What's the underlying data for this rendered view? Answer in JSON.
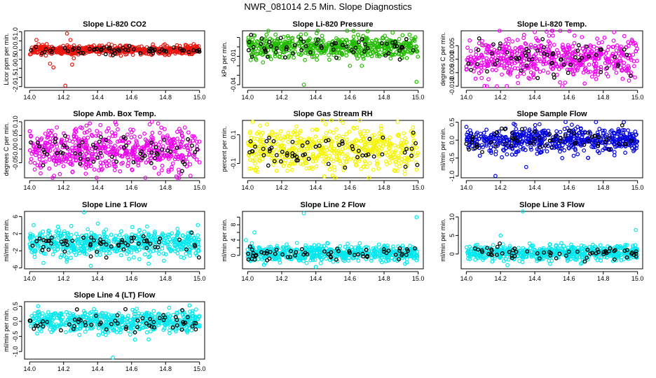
{
  "figure": {
    "title": "NWR_081014  2.5 Min. Slope Diagnostics"
  },
  "chart_data": [
    {
      "type": "scatter",
      "title": "Slope Li-820 CO2",
      "xlabel": "",
      "ylabel": "Licor ppm per min.",
      "xlim": [
        13.97,
        15.03
      ],
      "ylim": [
        -2.05,
        1.05
      ],
      "xticks": [
        "14.0",
        "14.2",
        "14.4",
        "14.6",
        "14.8",
        "15.0"
      ],
      "yticks": [
        "-2.0",
        "-1.5",
        "-1.0",
        "-0.5",
        "0.0",
        "0.5",
        "1.0"
      ],
      "color": "#e8150e",
      "series_summary": {
        "center": 0.0,
        "spread": 0.12
      },
      "highlighted_points_color": "#000000",
      "outliers": [
        [
          14.04,
          0.55
        ],
        [
          14.12,
          -0.75
        ],
        [
          14.14,
          -0.95
        ],
        [
          14.21,
          -1.95
        ],
        [
          14.22,
          0.9
        ],
        [
          14.25,
          -0.8
        ],
        [
          14.26,
          -0.45
        ],
        [
          14.24,
          0.55
        ]
      ]
    },
    {
      "type": "scatter",
      "title": "Slope Li-820 Pressure",
      "xlabel": "",
      "ylabel": "kPa per min.",
      "xlim": [
        13.97,
        15.03
      ],
      "ylim": [
        -0.043,
        0.017
      ],
      "xticks": [
        "14.0",
        "14.2",
        "14.4",
        "14.6",
        "14.8",
        "15.0"
      ],
      "yticks": [
        "-0.04",
        "-0.03",
        "-0.02",
        "-0.01",
        "0.00",
        "0.01"
      ],
      "yticks_labeled": [
        "-0.04",
        "-0.01"
      ],
      "color": "#22bb00",
      "series_summary": {
        "center": 0.0,
        "spread": 0.006
      },
      "highlighted_points_color": "#000000",
      "outliers": [
        [
          14.33,
          -0.04
        ],
        [
          14.99,
          -0.037
        ],
        [
          14.85,
          0.015
        ],
        [
          14.6,
          -0.02
        ]
      ]
    },
    {
      "type": "scatter",
      "title": "Slope Li-820 Temp.",
      "xlabel": "",
      "ylabel": "degrees C per min.",
      "xlim": [
        13.97,
        15.03
      ],
      "ylim": [
        -0.0105,
        0.0105
      ],
      "xticks": [
        "14.0",
        "14.2",
        "14.4",
        "14.6",
        "14.8",
        "15.0"
      ],
      "yticks": [
        "-0.010",
        "-0.005",
        "0.000",
        "0.005"
      ],
      "color": "#ee00ee",
      "series_summary": {
        "center": 0.0,
        "spread": 0.004
      },
      "highlighted_points_color": "#000000",
      "outliers": [
        [
          14.4,
          0.01
        ],
        [
          14.12,
          -0.01
        ],
        [
          14.56,
          -0.01
        ]
      ]
    },
    {
      "type": "scatter",
      "title": "Slope Amb. Box Temp.",
      "xlabel": "",
      "ylabel": "degrees C per min.",
      "xlim": [
        13.97,
        15.03
      ],
      "ylim": [
        -0.105,
        0.105
      ],
      "xticks": [
        "14.0",
        "14.2",
        "14.4",
        "14.6",
        "14.8",
        "15.0"
      ],
      "yticks": [
        "-0.05",
        "0.00",
        "0.05",
        "0.10"
      ],
      "color": "#ee00ee",
      "series_summary": {
        "center": 0.0,
        "spread": 0.04
      },
      "highlighted_points_color": "#000000",
      "outliers": [
        [
          14.72,
          0.1
        ],
        [
          14.33,
          -0.09
        ],
        [
          14.76,
          -0.09
        ],
        [
          14.51,
          0.09
        ]
      ]
    },
    {
      "type": "scatter",
      "title": "Slope Gas Stream RH",
      "xlabel": "",
      "ylabel": "percent per min.",
      "xlim": [
        13.97,
        15.03
      ],
      "ylim": [
        -0.2,
        0.2
      ],
      "xticks": [
        "14.0",
        "14.2",
        "14.4",
        "14.6",
        "14.8",
        "15.0"
      ],
      "yticks": [
        "-0.1",
        "0.1"
      ],
      "color": "#f4f400",
      "series_summary": {
        "center": 0.0,
        "spread": 0.08
      },
      "highlighted_points_color": "#000000",
      "outliers": [
        [
          14.03,
          0.19
        ],
        [
          14.88,
          0.19
        ],
        [
          14.45,
          -0.19
        ]
      ]
    },
    {
      "type": "scatter",
      "title": "Slope Sample Flow",
      "xlabel": "",
      "ylabel": "ml/min per min.",
      "xlim": [
        13.97,
        15.03
      ],
      "ylim": [
        -1.05,
        0.55
      ],
      "xticks": [
        "14.0",
        "14.2",
        "14.4",
        "14.6",
        "14.8",
        "15.0"
      ],
      "yticks": [
        "-1.0",
        "-0.5",
        "0.0",
        "0.5"
      ],
      "color": "#0000dd",
      "series_summary": {
        "center": 0.0,
        "spread": 0.17
      },
      "highlighted_points_color": "#000000",
      "outliers": [
        [
          14.17,
          -1.0
        ],
        [
          14.35,
          -0.75
        ],
        [
          14.56,
          -0.5
        ],
        [
          14.92,
          0.5
        ]
      ]
    },
    {
      "type": "scatter",
      "title": "Slope Line 1 Flow",
      "xlabel": "",
      "ylabel": "ml/min per min.",
      "xlim": [
        13.97,
        15.03
      ],
      "ylim": [
        -6.2,
        7.2
      ],
      "xticks": [
        "14.0",
        "14.2",
        "14.4",
        "14.6",
        "14.8",
        "15.0"
      ],
      "yticks": [
        "-6",
        "-2",
        "2",
        "6"
      ],
      "color": "#00e8ee",
      "series_summary": {
        "center": -0.3,
        "spread": 1.5
      },
      "highlighted_points_color": "#000000",
      "outliers": [
        [
          14.32,
          7.0
        ],
        [
          14.99,
          4.0
        ],
        [
          14.36,
          -5.5
        ],
        [
          14.7,
          -5.0
        ]
      ]
    },
    {
      "type": "scatter",
      "title": "Slope Line 2 Flow",
      "xlabel": "",
      "ylabel": "ml/min per min.",
      "xlim": [
        13.97,
        15.03
      ],
      "ylim": [
        -3.5,
        11.5
      ],
      "xticks": [
        "14.0",
        "14.2",
        "14.4",
        "14.6",
        "14.8",
        "15.0"
      ],
      "yticks": [
        "0",
        "2",
        "4",
        "6",
        "8",
        "10"
      ],
      "yticks_labeled": [
        "0",
        "4",
        "8"
      ],
      "color": "#00e8ee",
      "series_summary": {
        "center": 0.5,
        "spread": 1.0
      },
      "highlighted_points_color": "#000000",
      "outliers": [
        [
          14.33,
          11.0
        ],
        [
          14.99,
          10.0
        ],
        [
          14.04,
          6.0
        ],
        [
          13.99,
          4.0
        ]
      ]
    },
    {
      "type": "scatter",
      "title": "Slope Line 3 Flow",
      "xlabel": "",
      "ylabel": "ml/min per min.",
      "xlim": [
        13.97,
        15.03
      ],
      "ylim": [
        -4.0,
        11.5
      ],
      "xticks": [
        "14.0",
        "14.2",
        "14.4",
        "14.6",
        "14.8",
        "15.0"
      ],
      "yticks": [
        "0",
        "5",
        "10"
      ],
      "color": "#00e8ee",
      "series_summary": {
        "center": 0.3,
        "spread": 1.0
      },
      "highlighted_points_color": "#000000",
      "outliers": [
        [
          14.33,
          11.5
        ],
        [
          14.99,
          6.5
        ],
        [
          14.2,
          5.0
        ],
        [
          14.24,
          -3.0
        ]
      ]
    },
    {
      "type": "scatter",
      "title": "Slope Line 4 (LT) Flow",
      "xlabel": "",
      "ylabel": "ml/min per min.",
      "xlim": [
        13.97,
        15.03
      ],
      "ylim": [
        -1.25,
        0.65
      ],
      "xticks": [
        "14.0",
        "14.2",
        "14.4",
        "14.6",
        "14.8",
        "15.0"
      ],
      "yticks": [
        "-1.0",
        "-0.5",
        "0.0",
        "0.5"
      ],
      "color": "#00e8ee",
      "series_summary": {
        "center": 0.0,
        "spread": 0.18
      },
      "highlighted_points_color": "#000000",
      "outliers": [
        [
          14.49,
          -1.2
        ],
        [
          14.05,
          0.5
        ],
        [
          14.7,
          -0.6
        ]
      ]
    }
  ]
}
